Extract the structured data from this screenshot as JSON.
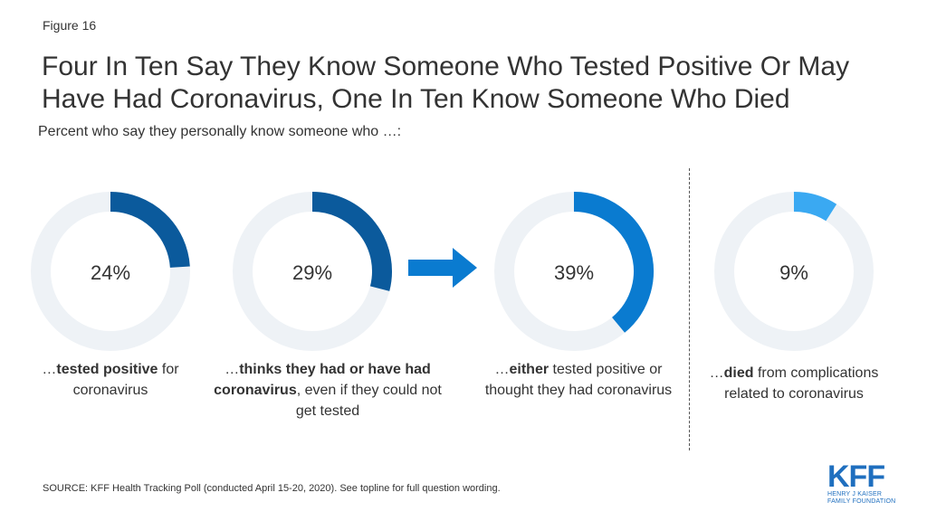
{
  "figure_label": "Figure 16",
  "title": "Four In Ten Say They Know Someone Who Tested Positive Or May Have Had Coronavirus, One In Ten Know Someone Who Died",
  "subtitle": "Percent who say they personally know someone who …:",
  "chart_data": {
    "type": "pie",
    "variant": "donut",
    "unit": "%",
    "series": [
      {
        "value": 24,
        "label": "24%",
        "caption": [
          {
            "t": "…",
            "b": false
          },
          {
            "t": "tested positive",
            "b": true
          },
          {
            "t": " for coronavirus",
            "b": false
          }
        ],
        "color": "#0b5a9c"
      },
      {
        "value": 29,
        "label": "29%",
        "caption": [
          {
            "t": "…",
            "b": false
          },
          {
            "t": "thinks they had or have had coronavirus",
            "b": true
          },
          {
            "t": ", even if they could not get tested",
            "b": false
          }
        ],
        "color": "#0b5a9c"
      },
      {
        "value": 39,
        "label": "39%",
        "caption": [
          {
            "t": "…",
            "b": false
          },
          {
            "t": "either",
            "b": true
          },
          {
            "t": " tested positive or thought they had coronavirus",
            "b": false
          }
        ],
        "color": "#0a7bd0"
      },
      {
        "value": 9,
        "label": "9%",
        "caption": [
          {
            "t": "…",
            "b": false
          },
          {
            "t": "died",
            "b": true
          },
          {
            "t": " from complications related to coronavirus",
            "b": false
          }
        ],
        "color": "#3aa9f2"
      }
    ],
    "track_color": "#eef2f6",
    "arrow_color": "#0a7bd0"
  },
  "source": "SOURCE: KFF Health Tracking Poll (conducted April 15-20, 2020). See topline for full question wording.",
  "logo": {
    "mark": "KFF",
    "line1": "HENRY J KAISER",
    "line2": "FAMILY FOUNDATION",
    "color": "#1f6fbf"
  }
}
